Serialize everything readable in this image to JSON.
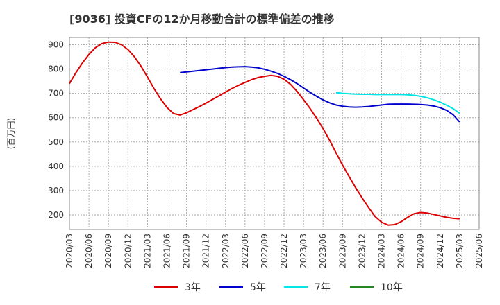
{
  "chart_data": {
    "type": "line",
    "title": "[9036]  投資CFの12か月移動合計の標準偏差の推移",
    "ylabel": "(百万円)",
    "xlabel": "",
    "ylim": [
      140,
      930
    ],
    "yticks": [
      200,
      300,
      400,
      500,
      600,
      700,
      800,
      900
    ],
    "xlim": [
      "2020/03",
      "2025/06"
    ],
    "xticks": [
      "2020/03",
      "2020/06",
      "2020/09",
      "2020/12",
      "2021/03",
      "2021/06",
      "2021/09",
      "2021/12",
      "2022/03",
      "2022/06",
      "2022/09",
      "2022/12",
      "2023/03",
      "2023/06",
      "2023/09",
      "2023/12",
      "2024/03",
      "2024/06",
      "2024/09",
      "2024/12",
      "2025/03",
      "2025/06"
    ],
    "grid": true,
    "legend_position": "bottom",
    "series": [
      {
        "name": "3年",
        "color": "#dd0000",
        "x": [
          "2020/03",
          "2020/04",
          "2020/05",
          "2020/06",
          "2020/07",
          "2020/08",
          "2020/09",
          "2020/10",
          "2020/11",
          "2020/12",
          "2021/01",
          "2021/02",
          "2021/03",
          "2021/04",
          "2021/05",
          "2021/06",
          "2021/07",
          "2021/08",
          "2021/09",
          "2021/10",
          "2021/11",
          "2021/12",
          "2022/01",
          "2022/02",
          "2022/03",
          "2022/04",
          "2022/05",
          "2022/06",
          "2022/07",
          "2022/08",
          "2022/09",
          "2022/10",
          "2022/11",
          "2022/12",
          "2023/01",
          "2023/02",
          "2023/03",
          "2023/04",
          "2023/05",
          "2023/06",
          "2023/07",
          "2023/08",
          "2023/09",
          "2023/10",
          "2023/11",
          "2023/12",
          "2024/01",
          "2024/02",
          "2024/03",
          "2024/04",
          "2024/05",
          "2024/06",
          "2024/07",
          "2024/08",
          "2024/09",
          "2024/10",
          "2024/11",
          "2024/12",
          "2025/01",
          "2025/02",
          "2025/03"
        ],
        "values": [
          740,
          785,
          825,
          860,
          888,
          905,
          911,
          910,
          900,
          880,
          850,
          812,
          767,
          720,
          678,
          642,
          617,
          611,
          620,
          633,
          646,
          660,
          675,
          690,
          705,
          720,
          733,
          745,
          756,
          765,
          770,
          774,
          770,
          758,
          737,
          708,
          674,
          638,
          598,
          555,
          507,
          455,
          405,
          358,
          312,
          270,
          230,
          193,
          170,
          158,
          160,
          172,
          190,
          205,
          210,
          208,
          202,
          196,
          190,
          186,
          184
        ]
      },
      {
        "name": "5年",
        "color": "#0000cc",
        "x": [
          "2021/08",
          "2021/09",
          "2021/10",
          "2021/11",
          "2021/12",
          "2022/01",
          "2022/02",
          "2022/03",
          "2022/04",
          "2022/05",
          "2022/06",
          "2022/07",
          "2022/08",
          "2022/09",
          "2022/10",
          "2022/11",
          "2022/12",
          "2023/01",
          "2023/02",
          "2023/03",
          "2023/04",
          "2023/05",
          "2023/06",
          "2023/07",
          "2023/08",
          "2023/09",
          "2023/10",
          "2023/11",
          "2023/12",
          "2024/01",
          "2024/02",
          "2024/03",
          "2024/04",
          "2024/05",
          "2024/06",
          "2024/07",
          "2024/08",
          "2024/09",
          "2024/10",
          "2024/11",
          "2024/12",
          "2025/01",
          "2025/02",
          "2025/03"
        ],
        "values": [
          785,
          788,
          791,
          794,
          797,
          800,
          803,
          806,
          808,
          809,
          810,
          808,
          805,
          799,
          791,
          782,
          770,
          756,
          740,
          722,
          704,
          688,
          673,
          661,
          652,
          647,
          644,
          643,
          644,
          646,
          649,
          652,
          655,
          656,
          656,
          656,
          655,
          654,
          652,
          648,
          641,
          630,
          612,
          582
        ]
      },
      {
        "name": "7年",
        "color": "#00e5e5",
        "x": [
          "2023/08",
          "2023/09",
          "2023/10",
          "2023/11",
          "2023/12",
          "2024/01",
          "2024/02",
          "2024/03",
          "2024/04",
          "2024/05",
          "2024/06",
          "2024/07",
          "2024/08",
          "2024/09",
          "2024/10",
          "2024/11",
          "2024/12",
          "2025/01",
          "2025/02",
          "2025/03"
        ],
        "values": [
          703,
          700,
          698,
          697,
          696,
          696,
          695,
          695,
          695,
          695,
          695,
          694,
          692,
          688,
          682,
          674,
          664,
          651,
          637,
          618
        ]
      },
      {
        "name": "10年",
        "color": "#228822",
        "x": [],
        "values": []
      }
    ]
  }
}
